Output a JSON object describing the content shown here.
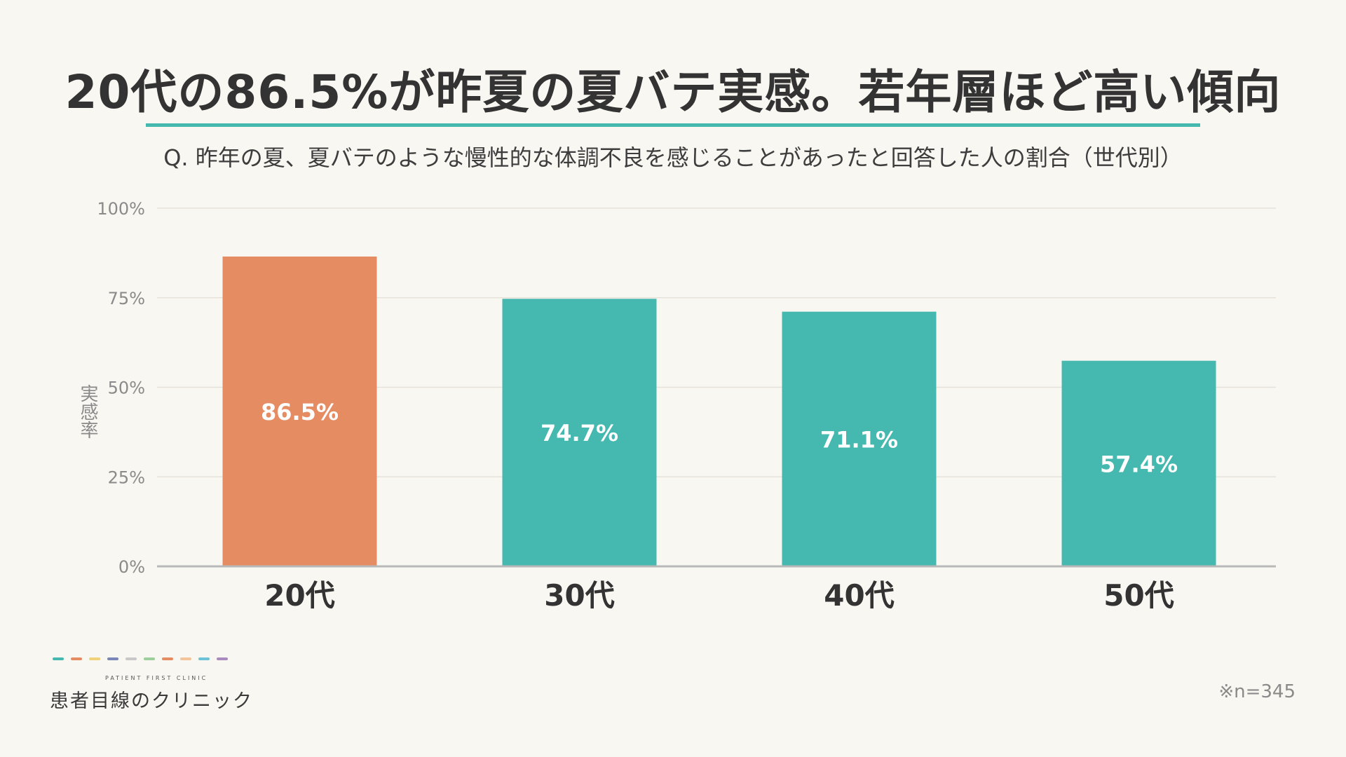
{
  "title": "20代の86.5%が昨夏の夏バテ実感。若年層ほど高い傾向",
  "subtitle": "Q. 昨年の夏、夏バテのような慢性的な体調不良を感じることがあったと回答した人の割合（世代別）",
  "colors": {
    "highlight": "#e58c63",
    "bar": "#45b8b0",
    "accent_rule": "#45b8b0",
    "background": "#f9f7f2"
  },
  "chart_data": {
    "type": "bar",
    "title": "20代の86.5%が昨夏の夏バテ実感。若年層ほど高い傾向",
    "ylabel": "実感率",
    "xlabel": "",
    "categories": [
      "20代",
      "30代",
      "40代",
      "50代"
    ],
    "values": [
      86.5,
      74.7,
      71.1,
      57.4
    ],
    "value_labels": [
      "86.5%",
      "74.7%",
      "71.1%",
      "57.4%"
    ],
    "highlight_index": 0,
    "ylim": [
      0,
      100
    ],
    "yticks": [
      0,
      25,
      50,
      75,
      100
    ],
    "ytick_labels": [
      "0%",
      "25%",
      "50%",
      "75%",
      "100%"
    ],
    "grid": true,
    "legend": "none"
  },
  "footer": {
    "logo_sub": "PATIENT FIRST CLINIC",
    "logo_main": "患者目線のクリニック",
    "dash_colors": [
      "#45b8b0",
      "#e58c63",
      "#f0d27a",
      "#7a86b8",
      "#c8c8c8",
      "#9ccf9c",
      "#e58c63",
      "#f3c49a",
      "#6cc3d6",
      "#a98bc0"
    ],
    "sample_note": "※n=345"
  }
}
